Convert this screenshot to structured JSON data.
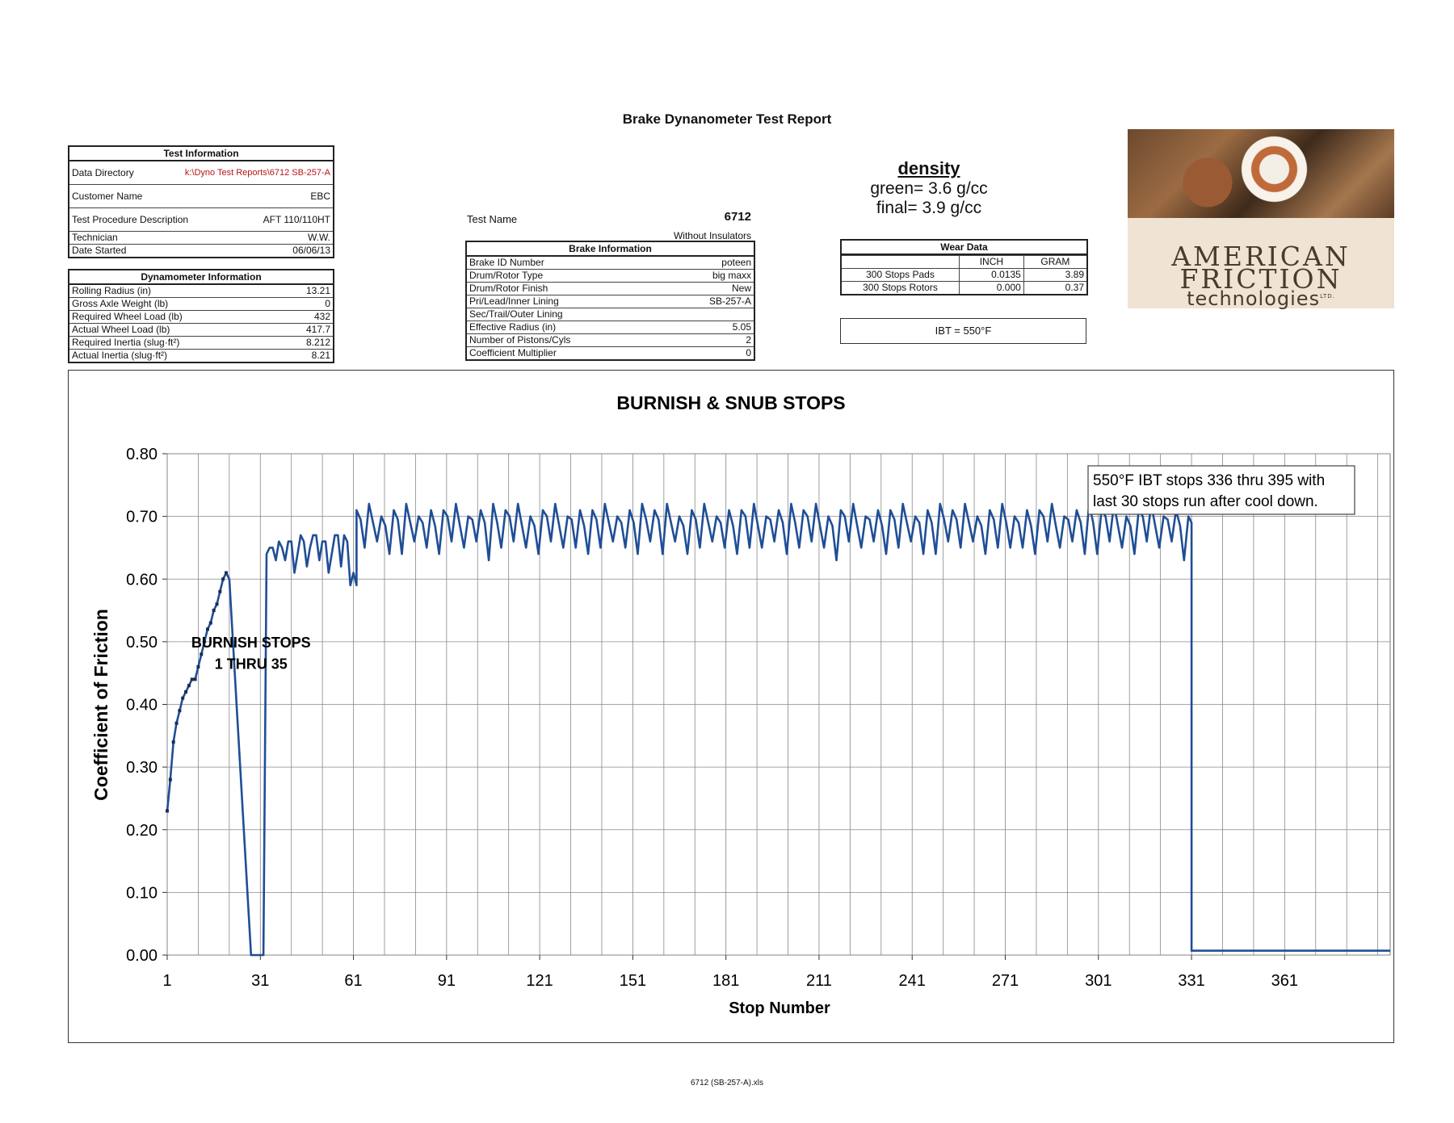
{
  "report": {
    "title": "Brake Dynanometer Test Report",
    "footer": "6712 (SB-257-A).xls"
  },
  "test_information": {
    "heading": "Test Information",
    "rows": [
      {
        "label": "Data Directory",
        "value": "k:\\Dyno Test Reports\\6712 SB-257-A"
      },
      {
        "label": "Customer Name",
        "value": "EBC"
      },
      {
        "label": "Test Procedure Description",
        "value": "AFT 110/110HT"
      },
      {
        "label": "Technician",
        "value": "W.W."
      },
      {
        "label": "Date Started",
        "value": "06/06/13"
      }
    ]
  },
  "dynamometer_information": {
    "heading": "Dynamometer Information",
    "rows": [
      {
        "label": "Rolling Radius (in)",
        "value": "13.21"
      },
      {
        "label": "Gross Axle Weight (lb)",
        "value": "0"
      },
      {
        "label": "Required Wheel Load (lb)",
        "value": "432"
      },
      {
        "label": "Actual Wheel Load (lb)",
        "value": "417.7"
      },
      {
        "label": "Required Inertia (slug·ft²)",
        "value": "8.212"
      },
      {
        "label": "Actual Inertia (slug·ft²)",
        "value": "8.21"
      }
    ]
  },
  "test_name": {
    "label": "Test Name",
    "value": "6712",
    "note": "Without Insulators"
  },
  "brake_information": {
    "heading": "Brake Information",
    "rows": [
      {
        "label": "Brake ID Number",
        "value": "poteen"
      },
      {
        "label": "Drum/Rotor Type",
        "value": "big maxx"
      },
      {
        "label": "Drum/Rotor Finish",
        "value": "New"
      },
      {
        "label": "Pri/Lead/Inner Lining",
        "value": "SB-257-A"
      },
      {
        "label": "Sec/Trail/Outer Lining",
        "value": ""
      },
      {
        "label": "Effective Radius (in)",
        "value": "5.05"
      },
      {
        "label": "Number of Pistons/Cyls",
        "value": "2"
      },
      {
        "label": "Coefficient Multiplier",
        "value": "0"
      }
    ]
  },
  "density": {
    "title": "density",
    "green": "green= 3.6 g/cc",
    "final": "final= 3.9 g/cc"
  },
  "wear_data": {
    "heading": "Wear Data",
    "columns": [
      "INCH",
      "GRAM"
    ],
    "rows": [
      {
        "label": "300 Stops Pads",
        "inch": "0.0135",
        "gram": "3.89"
      },
      {
        "label": "300 Stops Rotors",
        "inch": "0.000",
        "gram": "0.37"
      }
    ]
  },
  "ibt": {
    "text": "IBT = 550°F"
  },
  "logo": {
    "line1": "AMERICAN",
    "line2": "FRICTION",
    "line3": "technologies",
    "sup": "LTD."
  },
  "chart_data": {
    "type": "line",
    "title": "BURNISH & SNUB STOPS",
    "xlabel": "Stop Number",
    "ylabel": "Coefficient of Friction",
    "xlim": [
      1,
      395
    ],
    "ylim": [
      0,
      0.8
    ],
    "x_ticks": [
      "1",
      "31",
      "61",
      "91",
      "121",
      "151",
      "181",
      "211",
      "241",
      "271",
      "301",
      "331",
      "361"
    ],
    "y_ticks": [
      "0.80",
      "0.70",
      "0.60",
      "0.50",
      "0.40",
      "0.30",
      "0.20",
      "0.10",
      "0.00"
    ],
    "grid": true,
    "line_color": "#1f4e96",
    "annotations": [
      {
        "text": "BURNISH STOPS",
        "x": 28,
        "y": 0.5
      },
      {
        "text": "1  THRU  35",
        "x": 28,
        "y": 0.466
      },
      {
        "text": "550°F IBT stops 336 thru 395 with",
        "x": 1,
        "y": 0
      },
      {
        "text": "last 30 stops run after cool down.",
        "x": 1,
        "y": 0
      }
    ],
    "series": [
      {
        "x": [
          1,
          2,
          3,
          4,
          5,
          6,
          7,
          8,
          9,
          10,
          11,
          12,
          13,
          14,
          15,
          16,
          17,
          18,
          19,
          20,
          20,
          21,
          28,
          30,
          31,
          32,
          33,
          34,
          35,
          36,
          37,
          38,
          39,
          40,
          41,
          42,
          43,
          44,
          45,
          46,
          47,
          48,
          49,
          50,
          51,
          52,
          53,
          54,
          55,
          56,
          57,
          58,
          59,
          60,
          61,
          62
        ],
        "y": [
          0.23,
          0.28,
          0.34,
          0.37,
          0.39,
          0.41,
          0.42,
          0.43,
          0.44,
          0.44,
          0.46,
          0.48,
          0.5,
          0.52,
          0.53,
          0.55,
          0.56,
          0.58,
          0.6,
          0.61,
          0.61,
          0.6,
          0.0,
          0.0,
          0.0,
          0.0,
          0.64,
          0.65,
          0.65,
          0.63,
          0.66,
          0.65,
          0.63,
          0.66,
          0.66,
          0.61,
          0.64,
          0.67,
          0.66,
          0.62,
          0.65,
          0.67,
          0.67,
          0.63,
          0.66,
          0.66,
          0.61,
          0.64,
          0.67,
          0.67,
          0.62,
          0.67,
          0.66,
          0.59,
          0.61,
          0.59
        ],
        "marker_count": 20
      }
    ],
    "oscillation": {
      "x_start": 62,
      "x_end": 329,
      "period": 4,
      "high": 0.71,
      "low": 0.65,
      "drop": {
        "x": 331,
        "y": 0.0
      },
      "tail_end": 395,
      "tail_y": 0.007
    }
  }
}
